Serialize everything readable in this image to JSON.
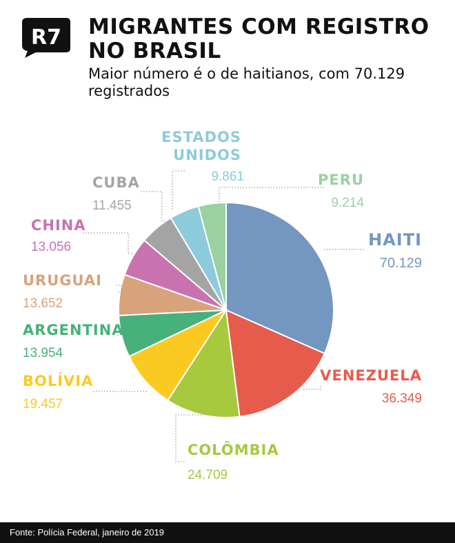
{
  "brand": {
    "logo_text": "R7"
  },
  "header": {
    "title": "MIGRANTES COM REGISTRO NO BRASIL",
    "subtitle": "Maior número é o de haitianos, com 70.129 registrados"
  },
  "footer": {
    "source": "Fonte: Polícia Federal, janeiro de 2019"
  },
  "chart_data": {
    "type": "pie",
    "title": "MIGRANTES COM REGISTRO NO BRASIL",
    "slices": [
      {
        "name": "HAITI",
        "value": 70129,
        "value_label": "70.129",
        "color": "#7397c0"
      },
      {
        "name": "VENEZUELA",
        "value": 36349,
        "value_label": "36.349",
        "color": "#e65b4c"
      },
      {
        "name": "COLÔMBIA",
        "value": 24709,
        "value_label": "24.709",
        "color": "#a6c93e"
      },
      {
        "name": "BOLÍVIA",
        "value": 19457,
        "value_label": "19.457",
        "color": "#fbca22"
      },
      {
        "name": "ARGENTINA",
        "value": 13954,
        "value_label": "13.954",
        "color": "#46b17b"
      },
      {
        "name": "URUGUAI",
        "value": 13652,
        "value_label": "13.652",
        "color": "#d8a27b"
      },
      {
        "name": "CHINA",
        "value": 13056,
        "value_label": "13.056",
        "color": "#c872b0"
      },
      {
        "name": "CUBA",
        "value": 11455,
        "value_label": "11.455",
        "color": "#a4a4a4"
      },
      {
        "name": "ESTADOS UNIDOS",
        "value": 9861,
        "value_label": "9.861",
        "color": "#8ccbdb"
      },
      {
        "name": "PERU",
        "value": 9214,
        "value_label": "9.214",
        "color": "#9bd0a0"
      }
    ]
  }
}
